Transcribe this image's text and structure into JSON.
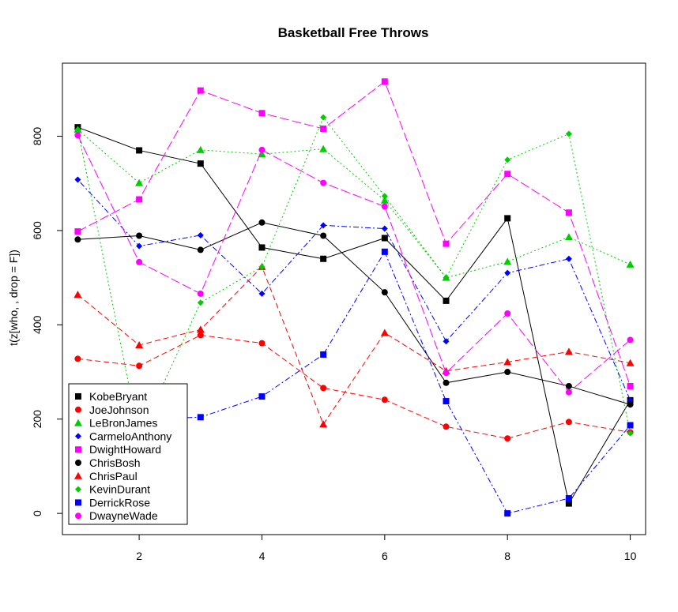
{
  "chart_data": {
    "type": "line",
    "title": "Basketball Free Throws",
    "xlabel": "",
    "ylabel": "t(z[who, , drop = F])",
    "xlim": [
      0.75,
      10.25
    ],
    "ylim": [
      -45,
      955
    ],
    "x": [
      1,
      2,
      3,
      4,
      5,
      6,
      7,
      8,
      9,
      10
    ],
    "x_ticks": [
      2,
      4,
      6,
      8,
      10
    ],
    "y_ticks": [
      0,
      200,
      400,
      600,
      800
    ],
    "grid": false,
    "legend": {
      "position": "bottom-left"
    },
    "series": [
      {
        "name": "KobeBryant",
        "color": "#000000",
        "marker": "square",
        "dash": "solid",
        "values": [
          819,
          770,
          742,
          564,
          540,
          584,
          451,
          626,
          21,
          240
        ]
      },
      {
        "name": "JoeJohnson",
        "color": "#ff0000",
        "marker": "circle",
        "dash": "dashed",
        "values": [
          328,
          313,
          378,
          361,
          266,
          241,
          184,
          159,
          194,
          172
        ]
      },
      {
        "name": "LeBronJames",
        "color": "#00cd00",
        "marker": "triangle",
        "dash": "dotted",
        "values": [
          814,
          701,
          771,
          762,
          773,
          664,
          500,
          534,
          586,
          528
        ]
      },
      {
        "name": "CarmeloAnthony",
        "color": "#0000ff",
        "marker": "diamond",
        "dash": "dotdash",
        "values": [
          708,
          567,
          590,
          466,
          611,
          604,
          365,
          510,
          540,
          240
        ]
      },
      {
        "name": "DwightHoward",
        "color": "#ff00ff",
        "marker": "square",
        "dash": "longdash",
        "values": [
          598,
          666,
          897,
          849,
          816,
          916,
          572,
          720,
          638,
          270
        ]
      },
      {
        "name": "ChrisBosh",
        "color": "#000000",
        "marker": "circle",
        "dash": "solid",
        "values": [
          581,
          589,
          559,
          617,
          589,
          469,
          277,
          300,
          270,
          231
        ]
      },
      {
        "name": "ChrisPaul",
        "color": "#ff0000",
        "marker": "triangle",
        "dash": "dashed",
        "values": [
          464,
          357,
          390,
          523,
          189,
          383,
          302,
          321,
          343,
          319
        ]
      },
      {
        "name": "KevinDurant",
        "color": "#00cd00",
        "marker": "diamond",
        "dash": "dotted",
        "values": [
          814,
          163,
          447,
          523,
          840,
          673,
          500,
          750,
          805,
          170
        ]
      },
      {
        "name": "DerrickRose",
        "color": "#0000ff",
        "marker": "square",
        "dash": "dotdash",
        "values": [
          170,
          200,
          204,
          248,
          337,
          555,
          238,
          0,
          32,
          187
        ]
      },
      {
        "name": "DwayneWade",
        "color": "#ff00ff",
        "marker": "circle",
        "dash": "longdash",
        "values": [
          802,
          533,
          466,
          771,
          701,
          651,
          298,
          424,
          257,
          368
        ]
      }
    ]
  }
}
